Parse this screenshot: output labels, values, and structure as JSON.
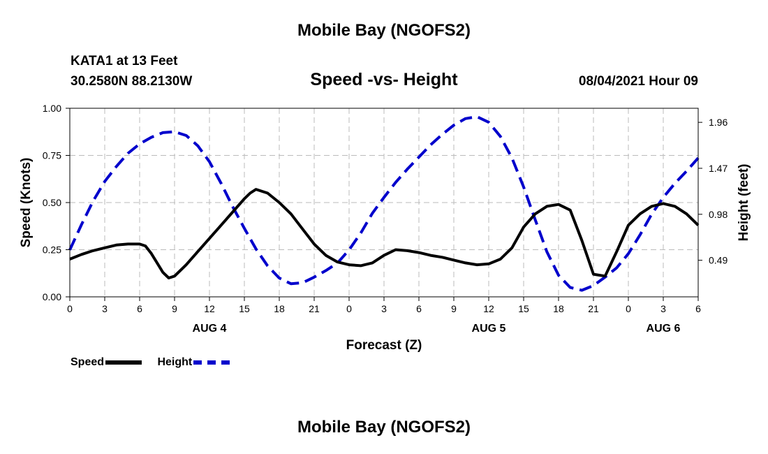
{
  "header": {
    "title": "Mobile Bay (NGOFS2)",
    "station": "KATA1 at 13 Feet",
    "coords": "30.2580N  88.2130W",
    "subtitle": "Speed -vs- Height",
    "datetime": "08/04/2021 Hour 09"
  },
  "footer": {
    "title": "Mobile Bay (NGOFS2)"
  },
  "legend": {
    "speed_label": "Speed",
    "height_label": "Height"
  },
  "colors": {
    "speed": "#000000",
    "height": "#0000cc",
    "grid": "#bbbbbb"
  },
  "chart_data": {
    "type": "line",
    "xlabel": "Forecast (Z)",
    "ylabel": "Speed (Knots)",
    "y2label": "Height (feet)",
    "x_ticks": [
      "0",
      "3",
      "6",
      "9",
      "12",
      "15",
      "18",
      "21",
      "0",
      "3",
      "6",
      "9",
      "12",
      "15",
      "18",
      "21",
      "0",
      "3",
      "6"
    ],
    "day_labels": [
      {
        "label": "AUG 4",
        "at_hour": 12
      },
      {
        "label": "AUG 5",
        "at_hour": 36
      },
      {
        "label": "AUG 6",
        "at_hour": 51
      }
    ],
    "xlim": [
      0,
      54
    ],
    "ylim": [
      0,
      1.0
    ],
    "y_ticks": [
      "0.00",
      "0.25",
      "0.50",
      "0.75",
      "1.00"
    ],
    "y2lim": [
      0.1,
      2.11
    ],
    "y2_ticks": [
      "0.49",
      "0.98",
      "1.47",
      "1.96"
    ],
    "grid": true,
    "legend_position": "bottom-left",
    "series": [
      {
        "name": "Speed",
        "axis": "left",
        "style": "solid",
        "x": [
          0,
          1,
          2,
          3,
          4,
          5,
          6,
          6.5,
          7,
          8,
          8.5,
          9,
          10,
          11,
          12,
          13,
          14,
          15,
          15.5,
          16,
          17,
          18,
          19,
          20,
          21,
          22,
          23,
          24,
          25,
          26,
          27,
          28,
          29,
          30,
          31,
          32,
          33,
          34,
          35,
          36,
          37,
          38,
          39,
          40,
          41,
          42,
          43,
          44,
          45,
          46,
          47,
          48,
          49,
          50,
          51,
          52,
          53,
          54
        ],
        "y": [
          0.2,
          0.225,
          0.245,
          0.26,
          0.275,
          0.28,
          0.28,
          0.27,
          0.23,
          0.13,
          0.1,
          0.11,
          0.17,
          0.24,
          0.31,
          0.38,
          0.45,
          0.52,
          0.55,
          0.57,
          0.55,
          0.5,
          0.44,
          0.36,
          0.28,
          0.22,
          0.185,
          0.17,
          0.165,
          0.18,
          0.22,
          0.25,
          0.245,
          0.235,
          0.22,
          0.21,
          0.195,
          0.18,
          0.17,
          0.175,
          0.2,
          0.26,
          0.37,
          0.44,
          0.48,
          0.49,
          0.46,
          0.3,
          0.12,
          0.11,
          0.24,
          0.38,
          0.44,
          0.48,
          0.495,
          0.48,
          0.44,
          0.38
        ]
      },
      {
        "name": "Height",
        "axis": "right",
        "style": "dashed",
        "x": [
          0,
          1,
          2,
          3,
          4,
          5,
          6,
          7,
          8,
          9,
          10,
          11,
          12,
          13,
          14,
          15,
          16,
          17,
          18,
          19,
          20,
          21,
          22,
          23,
          24,
          25,
          26,
          27,
          28,
          29,
          30,
          31,
          32,
          33,
          34,
          35,
          36,
          37,
          38,
          39,
          40,
          41,
          42,
          43,
          44,
          45,
          46,
          47,
          48,
          49,
          50,
          51,
          52,
          53,
          54
        ],
        "y": [
          0.6,
          0.87,
          1.12,
          1.33,
          1.49,
          1.63,
          1.73,
          1.8,
          1.85,
          1.86,
          1.82,
          1.71,
          1.54,
          1.31,
          1.06,
          0.83,
          0.61,
          0.43,
          0.3,
          0.24,
          0.25,
          0.31,
          0.38,
          0.46,
          0.6,
          0.78,
          0.99,
          1.16,
          1.32,
          1.46,
          1.59,
          1.72,
          1.83,
          1.93,
          2.0,
          2.02,
          1.96,
          1.81,
          1.58,
          1.27,
          0.92,
          0.58,
          0.33,
          0.2,
          0.17,
          0.22,
          0.31,
          0.41,
          0.56,
          0.76,
          0.98,
          1.16,
          1.31,
          1.44,
          1.58
        ]
      }
    ]
  }
}
